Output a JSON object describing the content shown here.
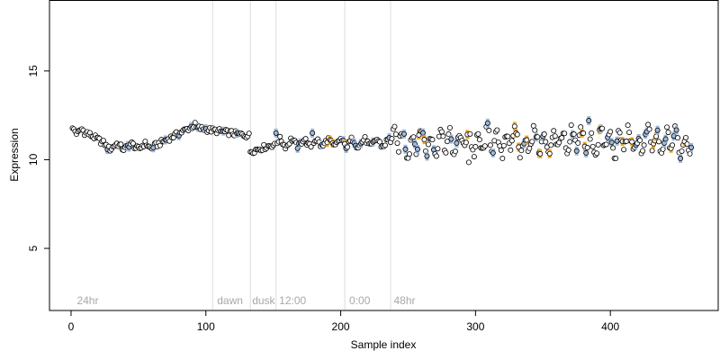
{
  "chart_data": {
    "type": "scatter",
    "title": "",
    "xlabel": "Sample index",
    "ylabel": "Expression",
    "xlim": [
      -16,
      480
    ],
    "ylim": [
      1.5,
      19
    ],
    "xticks": [
      0,
      100,
      200,
      300,
      400
    ],
    "yticks": [
      5,
      10,
      15
    ],
    "grid": false,
    "point_colors": {
      "default": "#ffffff",
      "light_phase": "#f5a623",
      "dark_phase": "#9fb8d9"
    },
    "phase_markers": [
      {
        "x": 105,
        "label": ""
      },
      {
        "x": 133,
        "label": ""
      },
      {
        "x": 152,
        "label": ""
      },
      {
        "x": 203,
        "label": ""
      },
      {
        "x": 237,
        "label": ""
      }
    ],
    "phase_labels": [
      {
        "x": 3,
        "text": "24hr"
      },
      {
        "x": 107,
        "text": "dawn"
      },
      {
        "x": 133,
        "text": "dusk"
      },
      {
        "x": 153,
        "text": "12:00"
      },
      {
        "x": 205,
        "text": "0:00"
      },
      {
        "x": 238,
        "text": "48hr"
      }
    ],
    "x": [],
    "y": []
  }
}
